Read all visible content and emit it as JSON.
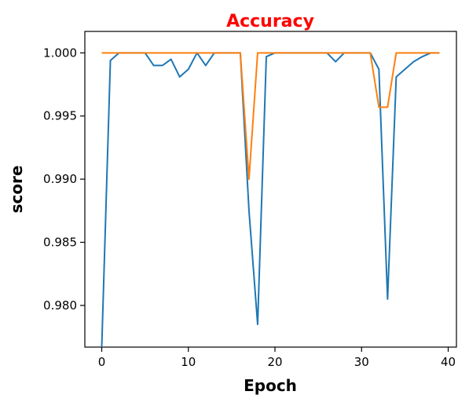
{
  "chart_data": {
    "type": "line",
    "title": "Accuracy",
    "xlabel": "Epoch",
    "ylabel": "score",
    "xlim": [
      -1.95,
      40.95
    ],
    "ylim": [
      0.9767,
      1.0017
    ],
    "xticks": [
      0,
      10,
      20,
      30,
      40
    ],
    "yticks": [
      0.98,
      0.985,
      0.99,
      0.995,
      1.0
    ],
    "xtick_labels": [
      "0",
      "10",
      "20",
      "30",
      "40"
    ],
    "ytick_labels": [
      "0.980",
      "0.985",
      "0.990",
      "0.995",
      "1.000"
    ],
    "grid": false,
    "series": [
      {
        "color": "#1f77b4",
        "x": [
          0,
          1,
          2,
          3,
          4,
          5,
          6,
          7,
          8,
          9,
          10,
          11,
          12,
          13,
          14,
          15,
          16,
          17,
          18,
          19,
          20,
          21,
          22,
          23,
          24,
          25,
          26,
          27,
          28,
          29,
          30,
          31,
          32,
          33,
          34,
          35,
          36,
          37,
          38,
          39
        ],
        "values": [
          0.9767,
          0.9994,
          1.0,
          1.0,
          1.0,
          1.0,
          0.999,
          0.999,
          0.9995,
          0.9981,
          0.9987,
          1.0,
          0.999,
          1.0,
          1.0,
          1.0,
          1.0,
          0.9875,
          0.9785,
          0.9997,
          1.0,
          1.0,
          1.0,
          1.0,
          1.0,
          1.0,
          1.0,
          0.9993,
          1.0,
          1.0,
          1.0,
          1.0,
          0.9987,
          0.9805,
          0.9981,
          0.9987,
          0.9993,
          0.9997,
          1.0,
          1.0
        ]
      },
      {
        "color": "#ff7f0e",
        "x": [
          0,
          1,
          2,
          3,
          4,
          5,
          6,
          7,
          8,
          9,
          10,
          11,
          12,
          13,
          14,
          15,
          16,
          17,
          18,
          19,
          20,
          21,
          22,
          23,
          24,
          25,
          26,
          27,
          28,
          29,
          30,
          31,
          32,
          33,
          34,
          35,
          36,
          37,
          38,
          39
        ],
        "values": [
          1.0,
          1.0,
          1.0,
          1.0,
          1.0,
          1.0,
          1.0,
          1.0,
          1.0,
          1.0,
          1.0,
          1.0,
          1.0,
          1.0,
          1.0,
          1.0,
          1.0,
          0.99,
          1.0,
          1.0,
          1.0,
          1.0,
          1.0,
          1.0,
          1.0,
          1.0,
          1.0,
          1.0,
          1.0,
          1.0,
          1.0,
          1.0,
          0.9957,
          0.9957,
          1.0,
          1.0,
          1.0,
          1.0,
          1.0,
          1.0
        ]
      }
    ]
  },
  "colors": {
    "title": "#ff0000",
    "axis": "#000000"
  }
}
